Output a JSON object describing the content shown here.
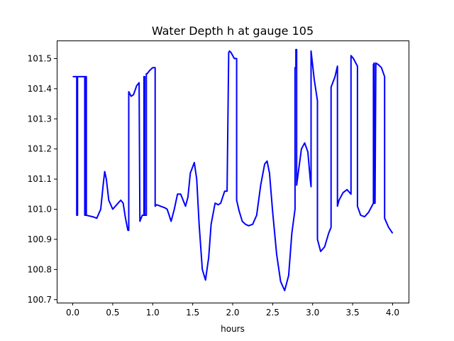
{
  "chart_data": {
    "type": "line",
    "title": "Water Depth h at gauge 105",
    "xlabel": "hours",
    "ylabel": "",
    "xlim": [
      -0.2,
      4.2
    ],
    "ylim": [
      100.69,
      101.56
    ],
    "xticks": [
      0.0,
      0.5,
      1.0,
      1.5,
      2.0,
      2.5,
      3.0,
      3.5,
      4.0
    ],
    "xtick_labels": [
      "0.0",
      "0.5",
      "1.0",
      "1.5",
      "2.0",
      "2.5",
      "3.0",
      "3.5",
      "4.0"
    ],
    "yticks": [
      100.7,
      100.8,
      100.9,
      101.0,
      101.1,
      101.2,
      101.3,
      101.4,
      101.5
    ],
    "ytick_labels": [
      "100.7",
      "100.8",
      "100.9",
      "101.0",
      "101.1",
      "101.2",
      "101.3",
      "101.4",
      "101.5"
    ],
    "grid": false,
    "series": [
      {
        "color": "#0000ff",
        "x": [
          0.0,
          0.05,
          0.05,
          0.06,
          0.06,
          0.1,
          0.15,
          0.15,
          0.16,
          0.16,
          0.17,
          0.17,
          0.25,
          0.3,
          0.35,
          0.38,
          0.4,
          0.42,
          0.45,
          0.5,
          0.55,
          0.6,
          0.63,
          0.66,
          0.69,
          0.7,
          0.7,
          0.73,
          0.76,
          0.8,
          0.83,
          0.84,
          0.84,
          0.87,
          0.89,
          0.89,
          0.9,
          0.9,
          0.92,
          0.92,
          0.93,
          0.93,
          0.96,
          1.0,
          1.03,
          1.03,
          1.05,
          1.1,
          1.15,
          1.18,
          1.2,
          1.23,
          1.27,
          1.31,
          1.35,
          1.38,
          1.41,
          1.44,
          1.47,
          1.52,
          1.55,
          1.58,
          1.62,
          1.66,
          1.7,
          1.73,
          1.78,
          1.82,
          1.85,
          1.9,
          1.93,
          1.95,
          1.96,
          1.96,
          1.98,
          2.02,
          2.05,
          2.05,
          2.08,
          2.12,
          2.16,
          2.2,
          2.25,
          2.3,
          2.35,
          2.4,
          2.43,
          2.46,
          2.5,
          2.55,
          2.6,
          2.65,
          2.7,
          2.74,
          2.78,
          2.78,
          2.79,
          2.79,
          2.8,
          2.8,
          2.82,
          2.86,
          2.9,
          2.94,
          2.97,
          2.98,
          2.98,
          3.02,
          3.06,
          3.06,
          3.1,
          3.15,
          3.2,
          3.23,
          3.23,
          3.28,
          3.31,
          3.31,
          3.33,
          3.38,
          3.43,
          3.48,
          3.48,
          3.51,
          3.56,
          3.56,
          3.6,
          3.65,
          3.7,
          3.76,
          3.76,
          3.77,
          3.77,
          3.78,
          3.79,
          3.79,
          3.82,
          3.86,
          3.9,
          3.9,
          3.95,
          4.0
        ],
        "y": [
          101.44,
          101.44,
          100.98,
          100.98,
          101.44,
          101.44,
          101.44,
          100.98,
          100.98,
          101.44,
          101.44,
          100.98,
          100.975,
          100.97,
          101.0,
          101.08,
          101.125,
          101.1,
          101.03,
          101.0,
          101.015,
          101.03,
          101.02,
          100.97,
          100.93,
          100.93,
          101.39,
          101.375,
          101.38,
          101.41,
          101.42,
          100.96,
          100.96,
          100.98,
          100.98,
          101.44,
          101.44,
          100.98,
          100.98,
          101.45,
          101.45,
          101.45,
          101.46,
          101.47,
          101.47,
          101.01,
          101.015,
          101.01,
          101.005,
          101.0,
          100.985,
          100.96,
          101.0,
          101.05,
          101.05,
          101.03,
          101.01,
          101.04,
          101.12,
          101.155,
          101.1,
          100.95,
          100.8,
          100.765,
          100.84,
          100.95,
          101.02,
          101.015,
          101.02,
          101.06,
          101.06,
          101.52,
          101.525,
          101.525,
          101.52,
          101.5,
          101.5,
          101.03,
          100.995,
          100.96,
          100.95,
          100.945,
          100.95,
          100.98,
          101.08,
          101.15,
          101.16,
          101.12,
          100.99,
          100.85,
          100.76,
          100.73,
          100.78,
          100.92,
          101.0,
          101.47,
          101.47,
          101.53,
          101.53,
          101.08,
          101.12,
          101.2,
          101.22,
          101.19,
          101.1,
          101.075,
          101.525,
          101.43,
          101.36,
          100.9,
          100.86,
          100.875,
          100.92,
          100.94,
          101.405,
          101.44,
          101.475,
          101.01,
          101.03,
          101.055,
          101.065,
          101.05,
          101.51,
          101.5,
          101.475,
          101.01,
          100.98,
          100.975,
          100.99,
          101.02,
          101.48,
          101.485,
          101.02,
          101.02,
          101.48,
          101.485,
          101.48,
          101.47,
          101.44,
          100.97,
          100.94,
          100.92
        ]
      }
    ]
  }
}
